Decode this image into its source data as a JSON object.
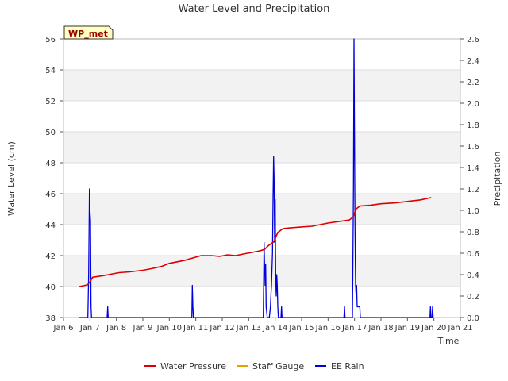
{
  "colors": {
    "water_pressure": "#dd0000",
    "staff_gauge": "#e8a000",
    "ee_rain": "#0000dd",
    "band": "#f2f2f2",
    "badge_bg": "#ffffc0",
    "badge_text": "#990000"
  },
  "chart_data": {
    "type": "line",
    "title": "Water Level and Precipitation",
    "badge": "WP_met",
    "xlabel": "Time",
    "ylabel_left": "Water Level (cm)",
    "ylabel_right": "Precipitation",
    "xlim": [
      6,
      21
    ],
    "ylim_left": [
      38,
      56
    ],
    "ylim_right": [
      0,
      2.6
    ],
    "x_ticks": [
      {
        "v": 6,
        "label": "Jan 6"
      },
      {
        "v": 7,
        "label": "Jan 7"
      },
      {
        "v": 8,
        "label": "Jan 8"
      },
      {
        "v": 9,
        "label": "Jan 9"
      },
      {
        "v": 10,
        "label": "Jan 10"
      },
      {
        "v": 11,
        "label": "Jan 11"
      },
      {
        "v": 12,
        "label": "Jan 12"
      },
      {
        "v": 13,
        "label": "Jan 13"
      },
      {
        "v": 14,
        "label": "Jan 14"
      },
      {
        "v": 15,
        "label": "Jan 15"
      },
      {
        "v": 16,
        "label": "Jan 16"
      },
      {
        "v": 17,
        "label": "Jan 17"
      },
      {
        "v": 18,
        "label": "Jan 18"
      },
      {
        "v": 19,
        "label": "Jan 19"
      },
      {
        "v": 20,
        "label": "Jan 20"
      },
      {
        "v": 21,
        "label": "Jan 21"
      }
    ],
    "y_left_ticks": [
      38,
      40,
      42,
      44,
      46,
      48,
      50,
      52,
      54,
      56
    ],
    "y_right_ticks": [
      "0.0",
      "0.2",
      "0.4",
      "0.6",
      "0.8",
      "1.0",
      "1.2",
      "1.4",
      "1.6",
      "1.8",
      "2.0",
      "2.2",
      "2.4",
      "2.6"
    ],
    "grid": true,
    "legend_position": "bottom",
    "series": [
      {
        "name": "Water Pressure",
        "axis": "left",
        "points": [
          [
            6.6,
            40.0
          ],
          [
            6.9,
            40.1
          ],
          [
            7.0,
            40.3
          ],
          [
            7.1,
            40.6
          ],
          [
            7.5,
            40.7
          ],
          [
            7.8,
            40.8
          ],
          [
            8.1,
            40.9
          ],
          [
            8.5,
            40.95
          ],
          [
            9.0,
            41.05
          ],
          [
            9.3,
            41.15
          ],
          [
            9.7,
            41.3
          ],
          [
            10.0,
            41.5
          ],
          [
            10.3,
            41.6
          ],
          [
            10.6,
            41.7
          ],
          [
            10.9,
            41.85
          ],
          [
            11.2,
            42.0
          ],
          [
            11.6,
            42.0
          ],
          [
            11.9,
            41.95
          ],
          [
            12.2,
            42.05
          ],
          [
            12.5,
            42.0
          ],
          [
            12.8,
            42.1
          ],
          [
            13.1,
            42.2
          ],
          [
            13.4,
            42.3
          ],
          [
            13.6,
            42.4
          ],
          [
            13.75,
            42.65
          ],
          [
            13.95,
            42.9
          ],
          [
            14.1,
            43.5
          ],
          [
            14.3,
            43.75
          ],
          [
            14.6,
            43.8
          ],
          [
            15.0,
            43.85
          ],
          [
            15.4,
            43.9
          ],
          [
            15.7,
            44.0
          ],
          [
            16.0,
            44.1
          ],
          [
            16.4,
            44.2
          ],
          [
            16.8,
            44.3
          ],
          [
            16.95,
            44.5
          ],
          [
            17.05,
            45.0
          ],
          [
            17.2,
            45.2
          ],
          [
            17.6,
            45.25
          ],
          [
            18.0,
            45.35
          ],
          [
            18.5,
            45.4
          ],
          [
            19.0,
            45.5
          ],
          [
            19.5,
            45.6
          ],
          [
            19.9,
            45.75
          ]
        ]
      },
      {
        "name": "Staff Gauge",
        "axis": "left",
        "points": []
      },
      {
        "name": "EE Rain",
        "axis": "right",
        "points": [
          [
            6.6,
            0
          ],
          [
            6.92,
            0
          ],
          [
            6.95,
            0.4
          ],
          [
            6.98,
            1.2
          ],
          [
            7.0,
            1.0
          ],
          [
            7.02,
            0.9
          ],
          [
            7.04,
            0.1
          ],
          [
            7.06,
            0
          ],
          [
            7.65,
            0
          ],
          [
            7.67,
            0.1
          ],
          [
            7.69,
            0
          ],
          [
            10.85,
            0
          ],
          [
            10.87,
            0.3
          ],
          [
            10.89,
            0.1
          ],
          [
            10.91,
            0
          ],
          [
            13.55,
            0
          ],
          [
            13.58,
            0.7
          ],
          [
            13.6,
            0.5
          ],
          [
            13.62,
            0.3
          ],
          [
            13.64,
            0.5
          ],
          [
            13.66,
            0.1
          ],
          [
            13.7,
            0
          ],
          [
            13.78,
            0
          ],
          [
            13.82,
            0.1
          ],
          [
            13.84,
            0.2
          ],
          [
            13.86,
            0.3
          ],
          [
            13.9,
            0.6
          ],
          [
            13.92,
            1.1
          ],
          [
            13.94,
            1.5
          ],
          [
            13.96,
            1.3
          ],
          [
            13.98,
            0.7
          ],
          [
            14.0,
            1.1
          ],
          [
            14.02,
            0.4
          ],
          [
            14.04,
            0.2
          ],
          [
            14.06,
            0.4
          ],
          [
            14.08,
            0.3
          ],
          [
            14.1,
            0.1
          ],
          [
            14.12,
            0
          ],
          [
            14.22,
            0
          ],
          [
            14.24,
            0.1
          ],
          [
            14.26,
            0
          ],
          [
            16.6,
            0
          ],
          [
            16.62,
            0.1
          ],
          [
            16.64,
            0
          ],
          [
            16.92,
            0
          ],
          [
            16.94,
            0.6
          ],
          [
            16.96,
            1.2
          ],
          [
            16.98,
            2.6
          ],
          [
            17.0,
            1.6
          ],
          [
            17.02,
            0.8
          ],
          [
            17.04,
            0.3
          ],
          [
            17.06,
            0.2
          ],
          [
            17.08,
            0.3
          ],
          [
            17.1,
            0.1
          ],
          [
            17.12,
            0.1
          ],
          [
            17.14,
            0.1
          ],
          [
            17.16,
            0.1
          ],
          [
            17.18,
            0.1
          ],
          [
            17.2,
            0.1
          ],
          [
            17.22,
            0
          ],
          [
            19.85,
            0
          ],
          [
            19.87,
            0.1
          ],
          [
            19.89,
            0
          ],
          [
            19.93,
            0
          ],
          [
            19.95,
            0.1
          ],
          [
            19.97,
            0
          ]
        ]
      }
    ]
  }
}
